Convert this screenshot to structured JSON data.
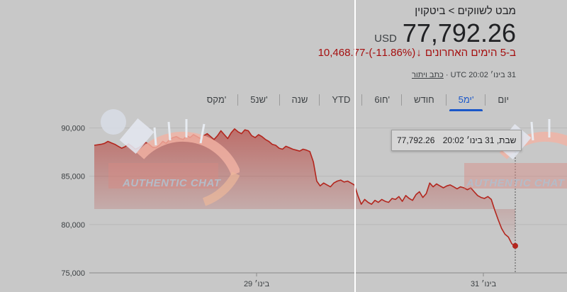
{
  "header": {
    "breadcrumb_root": "מבט לשווקים",
    "breadcrumb_sep": ">",
    "breadcrumb_current": "ביטקוין",
    "price": "77,792.26",
    "currency": "USD",
    "change_value": "-10,468.77",
    "change_percent": "(11.86%-)",
    "change_period": "ב-5 הימים האחרונים",
    "date_text": "31 בינו׳ 20:02 UTC ·",
    "disclaimer": "כתב ויתור"
  },
  "tabs": [
    {
      "label": "יום"
    },
    {
      "label": "5ימ'"
    },
    {
      "label": "חודש"
    },
    {
      "label": "6חו'"
    },
    {
      "label": "YTD"
    },
    {
      "label": "שנה"
    },
    {
      "label": "5שנ'"
    },
    {
      "label": "מקס'"
    }
  ],
  "active_tab": 1,
  "tooltip": {
    "date": "שבת, 31 בינו׳ 20:02",
    "value": "77,792.26"
  },
  "watermark": {
    "text": "AUTHENTIC CHAT"
  },
  "colors": {
    "line": "#b3261e",
    "accent": "#1a57c9",
    "negative": "#a50e0e"
  },
  "chart_data": {
    "type": "area",
    "yticks": [
      "90,000",
      "85,000",
      "80,000",
      "75,000"
    ],
    "ytick_values": [
      90000,
      85000,
      80000,
      75000
    ],
    "xticks": [
      "29 בינו׳",
      "31 בינו׳"
    ],
    "ylim": [
      75000,
      91500
    ],
    "series": [
      {
        "values": [
          88200,
          88250,
          88300,
          88400,
          88600,
          88450,
          88300,
          88100,
          87900,
          88050,
          88350,
          88100,
          87800,
          87950,
          88200,
          88500,
          88300,
          88000,
          87950,
          88200,
          88600,
          88400,
          88800,
          89000,
          89100,
          88900,
          88800,
          89200,
          89000,
          89300,
          89100,
          88900,
          89200,
          89400,
          89100,
          88800,
          89200,
          89700,
          89300,
          88900,
          89500,
          89900,
          89600,
          89400,
          89800,
          89700,
          89200,
          89000,
          89300,
          89100,
          88800,
          88600,
          88300,
          88200,
          87900,
          87800,
          88100,
          87950,
          87800,
          87700,
          87600,
          87800,
          87700,
          87550,
          86500,
          84500,
          84000,
          84300,
          84100,
          83900,
          84300,
          84500,
          84600,
          84400,
          84500,
          84300,
          84100,
          83000,
          82100,
          82600,
          82300,
          82100,
          82500,
          82300,
          82600,
          82400,
          82300,
          82700,
          82600,
          82900,
          82400,
          83000,
          82700,
          82500,
          83100,
          83400,
          82800,
          83200,
          84300,
          83900,
          84200,
          84000,
          83800,
          84000,
          84100,
          83900,
          83700,
          83900,
          83800,
          83600,
          83800,
          83400,
          83000,
          82800,
          82700,
          82900,
          82600,
          81500,
          80500,
          79600,
          79000,
          78700,
          78000,
          77792
        ]
      }
    ]
  }
}
